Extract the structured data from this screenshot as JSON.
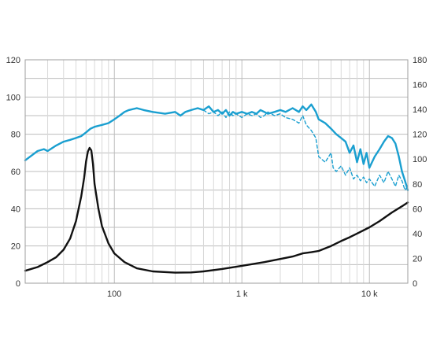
{
  "chart_data": {
    "type": "line",
    "x_scale": "log",
    "xlim": [
      20,
      20000
    ],
    "ylim_left": [
      0,
      120
    ],
    "ylim_right": [
      0,
      180
    ],
    "grid": true,
    "x_ticks": [
      {
        "value": 100,
        "label": "100"
      },
      {
        "value": 1000,
        "label": "1 k"
      },
      {
        "value": 10000,
        "label": "10 k"
      }
    ],
    "y_ticks_left": [
      {
        "value": 0,
        "label": "0"
      },
      {
        "value": 20,
        "label": "20"
      },
      {
        "value": 40,
        "label": "40"
      },
      {
        "value": 60,
        "label": "60"
      },
      {
        "value": 80,
        "label": "80"
      },
      {
        "value": 100,
        "label": "100"
      },
      {
        "value": 120,
        "label": "120"
      }
    ],
    "y_ticks_right": [
      {
        "value": 0,
        "label": "0"
      },
      {
        "value": 20,
        "label": "20"
      },
      {
        "value": 40,
        "label": "40"
      },
      {
        "value": 60,
        "label": "60"
      },
      {
        "value": 80,
        "label": "80"
      },
      {
        "value": 100,
        "label": "100"
      },
      {
        "value": 120,
        "label": "120"
      },
      {
        "value": 140,
        "label": "140"
      },
      {
        "value": 160,
        "label": "160"
      },
      {
        "value": 180,
        "label": "180"
      }
    ],
    "series": [
      {
        "axis": "left",
        "color": "#1a9fd0",
        "style": "solid",
        "x": [
          20,
          25,
          28,
          30,
          35,
          40,
          45,
          50,
          55,
          60,
          65,
          70,
          80,
          90,
          100,
          110,
          120,
          130,
          150,
          170,
          200,
          250,
          300,
          330,
          360,
          400,
          450,
          500,
          550,
          600,
          650,
          700,
          750,
          800,
          850,
          900,
          1000,
          1100,
          1200,
          1300,
          1400,
          1500,
          1600,
          1800,
          2000,
          2200,
          2500,
          2800,
          3000,
          3200,
          3500,
          3800,
          4000,
          4500,
          5000,
          5500,
          6000,
          6500,
          7000,
          7500,
          8000,
          8500,
          9000,
          9500,
          10000,
          11000,
          12000,
          13000,
          14000,
          15000,
          16000,
          17000,
          18000,
          19000,
          20000
        ],
        "y": [
          66,
          71,
          72,
          71,
          74,
          76,
          77,
          78,
          79,
          81,
          83,
          84,
          85,
          86,
          88,
          90,
          92,
          93,
          94,
          93,
          92,
          91,
          92,
          90,
          92,
          93,
          94,
          93,
          95,
          92,
          93,
          91,
          93,
          90,
          92,
          91,
          92,
          91,
          92,
          91,
          93,
          92,
          91,
          92,
          93,
          92,
          94,
          92,
          95,
          93,
          96,
          92,
          88,
          86,
          83,
          80,
          78,
          76,
          70,
          74,
          65,
          72,
          64,
          70,
          62,
          68,
          72,
          76,
          79,
          78,
          75,
          68,
          60,
          55,
          50
        ]
      },
      {
        "axis": "left",
        "color": "#1a9fd0",
        "style": "dashed",
        "x": [
          500,
          550,
          600,
          650,
          700,
          750,
          800,
          850,
          900,
          1000,
          1100,
          1200,
          1300,
          1400,
          1500,
          1600,
          1800,
          2000,
          2200,
          2500,
          2800,
          3000,
          3200,
          3500,
          3800,
          4000,
          4500,
          5000,
          5200,
          5500,
          6000,
          6500,
          7000,
          7500,
          8000,
          8500,
          9000,
          9500,
          10000,
          11000,
          12000,
          13000,
          14000,
          15000,
          16000,
          17000,
          18000,
          19000,
          20000
        ],
        "y": [
          93,
          91,
          92,
          90,
          92,
          89,
          92,
          90,
          91,
          89,
          91,
          90,
          91,
          89,
          90,
          92,
          90,
          91,
          89,
          88,
          86,
          90,
          85,
          82,
          78,
          68,
          65,
          70,
          62,
          60,
          63,
          58,
          62,
          56,
          58,
          55,
          57,
          54,
          56,
          52,
          58,
          54,
          60,
          56,
          52,
          58,
          55,
          50,
          52
        ]
      },
      {
        "axis": "right",
        "color": "#111111",
        "style": "solid",
        "x": [
          20,
          25,
          30,
          35,
          40,
          45,
          50,
          55,
          58,
          60,
          62,
          64,
          66,
          68,
          70,
          75,
          80,
          90,
          100,
          120,
          150,
          200,
          300,
          400,
          500,
          700,
          1000,
          1500,
          2000,
          2500,
          3000,
          3500,
          4000,
          5000,
          6000,
          7000,
          8000,
          10000,
          12000,
          15000,
          18000,
          20000
        ],
        "y": [
          10,
          13,
          17,
          21,
          27,
          36,
          50,
          70,
          85,
          98,
          106,
          109,
          107,
          96,
          80,
          60,
          46,
          32,
          24,
          17,
          12,
          9.5,
          8.5,
          8.7,
          9.5,
          11.5,
          14,
          17,
          19.5,
          21.5,
          24,
          25,
          26,
          30,
          34,
          37,
          40,
          45,
          50,
          57,
          62,
          65
        ]
      }
    ]
  }
}
